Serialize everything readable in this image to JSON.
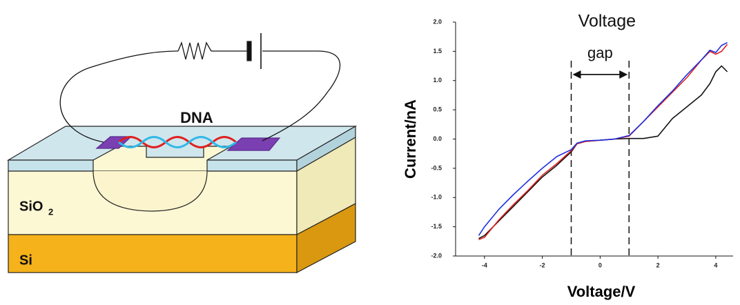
{
  "diagram": {
    "labels": {
      "dna": "DNA",
      "oxide": "SiO",
      "oxide_subscript": "2",
      "substrate": "Si"
    }
  },
  "chart_data": {
    "type": "line",
    "x_label": "Voltage/V",
    "y_label": "Current/nA",
    "annotation_lines": [
      "Voltage",
      "gap"
    ],
    "vlines": [
      -1,
      1
    ],
    "x": [
      -4.2,
      -4,
      -3.5,
      -3,
      -2.5,
      -2,
      -1.5,
      -1,
      -0.8,
      -0.5,
      0,
      0.5,
      1,
      1.5,
      2,
      2.5,
      3,
      3.5,
      3.8,
      4,
      4.2,
      4.4
    ],
    "series": [
      {
        "color": "#111111",
        "values": [
          -1.7,
          -1.65,
          -1.4,
          -1.15,
          -0.9,
          -0.65,
          -0.45,
          -0.22,
          -0.08,
          -0.04,
          -0.02,
          0,
          0.01,
          0.01,
          0.05,
          0.35,
          0.55,
          0.75,
          0.95,
          1.15,
          1.25,
          1.15
        ]
      },
      {
        "color": "#e0201e",
        "values": [
          -1.72,
          -1.68,
          -1.38,
          -1.12,
          -0.88,
          -0.62,
          -0.42,
          -0.2,
          -0.08,
          -0.04,
          -0.02,
          0,
          0.05,
          0.3,
          0.55,
          0.8,
          1.05,
          1.35,
          1.5,
          1.45,
          1.5,
          1.62
        ]
      },
      {
        "color": "#1d2fe0",
        "values": [
          -1.65,
          -1.5,
          -1.2,
          -0.95,
          -0.72,
          -0.5,
          -0.3,
          -0.18,
          -0.07,
          -0.03,
          -0.02,
          0,
          0.06,
          0.3,
          0.57,
          0.82,
          1.1,
          1.35,
          1.52,
          1.48,
          1.6,
          1.65
        ]
      }
    ],
    "xlim": [
      -5,
      4.6
    ],
    "ylim": [
      -2,
      2
    ],
    "xticks": [
      -4,
      -2,
      0,
      2,
      4
    ],
    "yticks": [
      {
        "value": 2,
        "label": "2.0"
      },
      1.5,
      {
        "value": 1,
        "label": "1.0"
      },
      0.5,
      {
        "value": 0,
        "label": "0.0"
      },
      -0.5,
      {
        "value": -1,
        "label": "-1.0"
      },
      -1.5,
      {
        "value": -2,
        "label": "-2.0"
      }
    ]
  }
}
